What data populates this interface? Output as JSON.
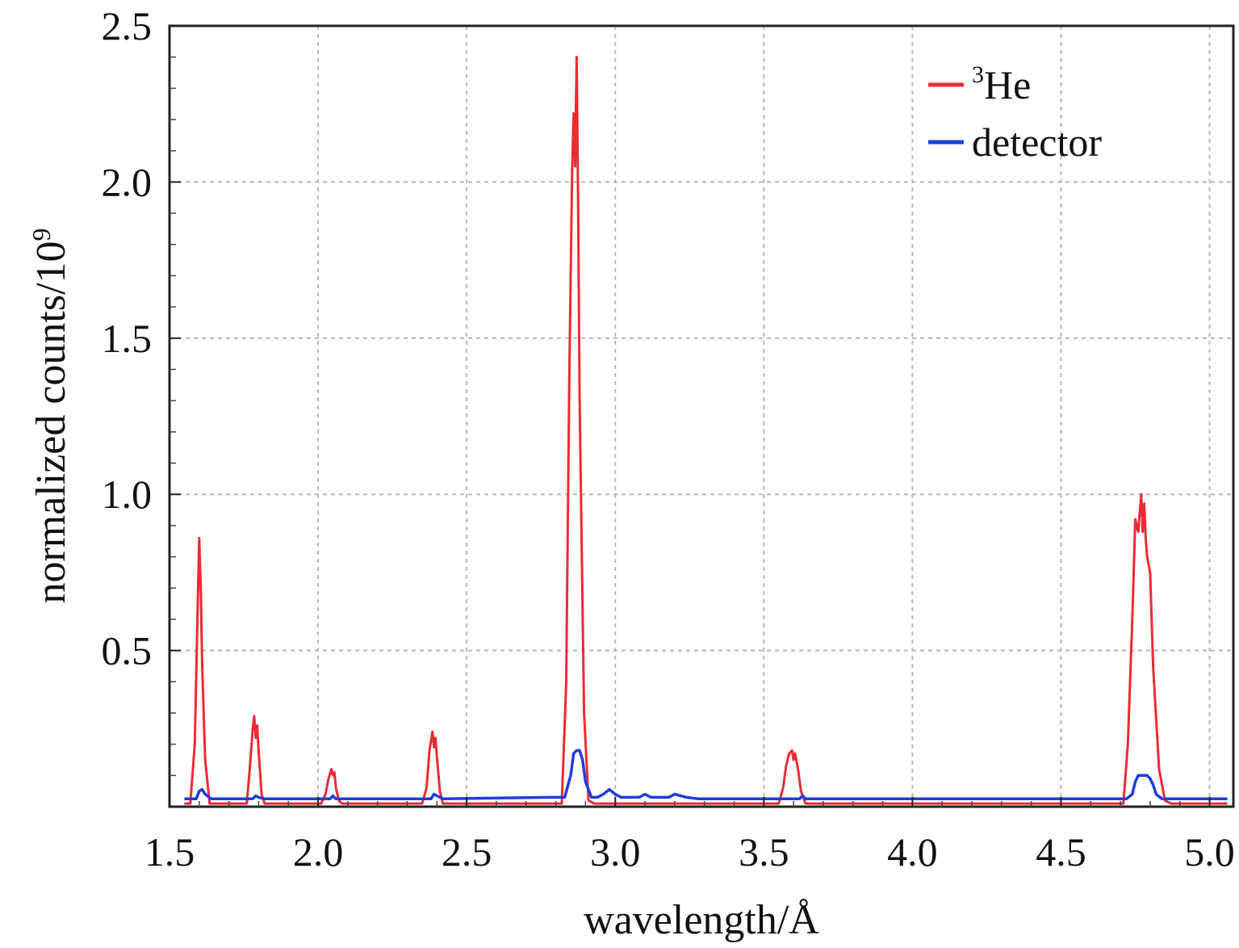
{
  "chart_data": {
    "type": "line",
    "title": "",
    "xlabel": "wavelength/Å",
    "ylabel_text": "normalized counts/10",
    "ylabel_superscript": "9",
    "xlim": [
      1.5,
      5.08
    ],
    "ylim": [
      0,
      2.5
    ],
    "x_ticks": [
      "1.5",
      "2.0",
      "2.5",
      "3.0",
      "3.5",
      "4.0",
      "4.5",
      "5.0"
    ],
    "y_ticks": [
      "0.5",
      "1.0",
      "1.5",
      "2.0",
      "2.5"
    ],
    "grid": true,
    "legend_position": "top-right",
    "series": [
      {
        "name_superscript": "3",
        "name_text": "He",
        "color": "#ee2a35",
        "x": [
          1.55,
          1.57,
          1.585,
          1.595,
          1.6,
          1.605,
          1.61,
          1.62,
          1.635,
          1.65,
          1.76,
          1.77,
          1.78,
          1.785,
          1.79,
          1.795,
          1.8,
          1.81,
          1.82,
          1.83,
          2.01,
          2.025,
          2.035,
          2.045,
          2.05,
          2.055,
          2.06,
          2.07,
          2.08,
          2.09,
          2.35,
          2.365,
          2.375,
          2.385,
          2.39,
          2.395,
          2.4,
          2.41,
          2.42,
          2.43,
          2.82,
          2.835,
          2.845,
          2.855,
          2.86,
          2.865,
          2.87,
          2.875,
          2.88,
          2.895,
          2.91,
          2.93,
          3.55,
          3.565,
          3.575,
          3.585,
          3.595,
          3.6,
          3.605,
          3.615,
          3.625,
          3.64,
          3.655,
          4.71,
          4.725,
          4.74,
          4.75,
          4.76,
          4.765,
          4.77,
          4.775,
          4.78,
          4.785,
          4.79,
          4.8,
          4.81,
          4.83,
          4.85,
          4.87,
          5.06
        ],
        "y": [
          0.01,
          0.01,
          0.2,
          0.65,
          0.86,
          0.7,
          0.45,
          0.15,
          0.01,
          0.01,
          0.01,
          0.12,
          0.25,
          0.29,
          0.22,
          0.26,
          0.18,
          0.04,
          0.01,
          0.01,
          0.01,
          0.04,
          0.09,
          0.12,
          0.1,
          0.11,
          0.06,
          0.02,
          0.01,
          0.01,
          0.01,
          0.06,
          0.18,
          0.24,
          0.19,
          0.22,
          0.16,
          0.05,
          0.01,
          0.01,
          0.01,
          0.4,
          1.35,
          2.05,
          2.22,
          2.05,
          2.4,
          1.95,
          1.3,
          0.3,
          0.02,
          0.01,
          0.01,
          0.06,
          0.13,
          0.17,
          0.18,
          0.15,
          0.17,
          0.12,
          0.05,
          0.01,
          0.01,
          0.01,
          0.2,
          0.6,
          0.92,
          0.88,
          0.94,
          1.0,
          0.88,
          0.97,
          0.86,
          0.8,
          0.75,
          0.45,
          0.12,
          0.02,
          0.01,
          0.01
        ]
      },
      {
        "name": "detector",
        "color": "#1f3ddb",
        "x": [
          1.55,
          1.59,
          1.6,
          1.61,
          1.62,
          1.64,
          1.78,
          1.79,
          1.8,
          1.82,
          2.04,
          2.05,
          2.06,
          2.38,
          2.39,
          2.4,
          2.42,
          2.78,
          2.83,
          2.85,
          2.86,
          2.87,
          2.88,
          2.89,
          2.9,
          2.92,
          2.94,
          2.96,
          2.98,
          3.0,
          3.02,
          3.08,
          3.1,
          3.12,
          3.18,
          3.2,
          3.24,
          3.28,
          3.62,
          3.63,
          3.64,
          4.72,
          4.74,
          4.75,
          4.76,
          4.77,
          4.78,
          4.79,
          4.8,
          4.81,
          4.82,
          4.84,
          5.06
        ],
        "y": [
          0.025,
          0.025,
          0.05,
          0.055,
          0.04,
          0.025,
          0.025,
          0.035,
          0.03,
          0.025,
          0.025,
          0.035,
          0.025,
          0.025,
          0.04,
          0.035,
          0.025,
          0.03,
          0.03,
          0.1,
          0.17,
          0.18,
          0.18,
          0.15,
          0.08,
          0.03,
          0.03,
          0.04,
          0.055,
          0.04,
          0.03,
          0.03,
          0.04,
          0.03,
          0.03,
          0.04,
          0.03,
          0.025,
          0.025,
          0.035,
          0.025,
          0.025,
          0.04,
          0.08,
          0.1,
          0.1,
          0.1,
          0.1,
          0.09,
          0.07,
          0.04,
          0.025,
          0.025
        ]
      }
    ]
  }
}
